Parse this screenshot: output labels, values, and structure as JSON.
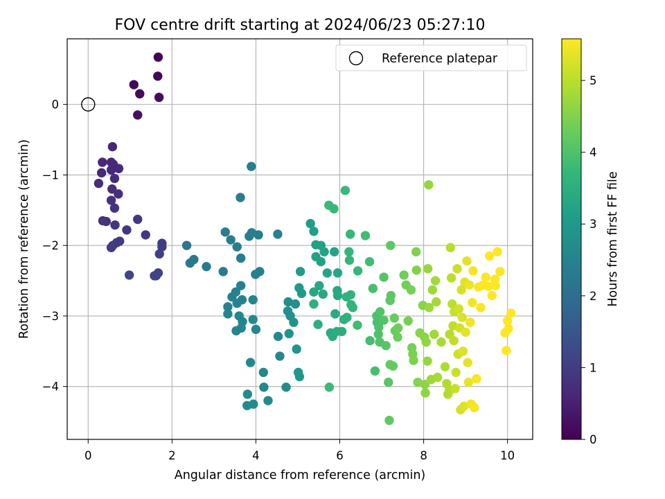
{
  "chart_data": {
    "type": "scatter",
    "title": "FOV centre drift starting at 2024/06/23 05:27:10",
    "xlabel": "Angular distance from reference (arcmin)",
    "ylabel": "Rotation from reference (arcmin)",
    "xlim": [
      -0.5,
      10.6
    ],
    "ylim": [
      -4.75,
      0.93
    ],
    "xticks": [
      0,
      2,
      4,
      6,
      8,
      10
    ],
    "yticks": [
      -4,
      -3,
      -2,
      -1,
      0
    ],
    "xtick_labels": [
      "0",
      "2",
      "4",
      "6",
      "8",
      "10"
    ],
    "ytick_labels": [
      "−4",
      "−3",
      "−2",
      "−1",
      "0"
    ],
    "grid": true,
    "legend": {
      "location": "upper right",
      "entries": [
        {
          "label": "Reference platepar",
          "marker": "open-circle"
        }
      ]
    },
    "reference_point": {
      "x": 0,
      "y": 0
    },
    "colorbar": {
      "label": "Hours from first FF file",
      "colormap": "viridis",
      "range": [
        0,
        5.58
      ],
      "ticks": [
        0,
        1,
        2,
        3,
        4,
        5
      ],
      "tick_labels": [
        "0",
        "1",
        "2",
        "3",
        "4",
        "5"
      ],
      "stops": [
        "#440154",
        "#482878",
        "#3e4989",
        "#31688e",
        "#26828e",
        "#1f9e89",
        "#35b779",
        "#6ece58",
        "#b5de2b",
        "#fde725"
      ]
    },
    "points": [
      [
        1.67,
        0.67,
        0.05
      ],
      [
        1.66,
        0.4,
        0.08
      ],
      [
        1.09,
        0.28,
        0.12
      ],
      [
        1.23,
        0.15,
        0.15
      ],
      [
        1.69,
        0.1,
        0.18
      ],
      [
        1.18,
        -0.15,
        0.22
      ],
      [
        0.58,
        -0.6,
        0.6
      ],
      [
        0.34,
        -0.82,
        0.62
      ],
      [
        0.55,
        -0.82,
        0.63
      ],
      [
        0.6,
        -0.85,
        0.65
      ],
      [
        0.32,
        -0.97,
        0.66
      ],
      [
        0.55,
        -0.93,
        0.67
      ],
      [
        0.73,
        -0.91,
        0.68
      ],
      [
        0.63,
        -1.05,
        0.7
      ],
      [
        0.25,
        -1.12,
        0.72
      ],
      [
        0.57,
        -1.2,
        0.74
      ],
      [
        0.72,
        -1.27,
        0.76
      ],
      [
        0.55,
        -1.36,
        0.78
      ],
      [
        0.63,
        -1.47,
        0.8
      ],
      [
        0.35,
        -1.65,
        0.82
      ],
      [
        0.43,
        -1.66,
        0.84
      ],
      [
        0.64,
        -1.71,
        0.86
      ],
      [
        1.18,
        -1.63,
        0.88
      ],
      [
        0.92,
        -1.78,
        0.9
      ],
      [
        1.37,
        -1.85,
        0.92
      ],
      [
        0.75,
        -1.94,
        0.95
      ],
      [
        0.68,
        -1.96,
        0.97
      ],
      [
        0.59,
        -2.0,
        0.99
      ],
      [
        0.55,
        -2.03,
        1.0
      ],
      [
        1.76,
        -1.97,
        1.02
      ],
      [
        1.76,
        -2.02,
        1.05
      ],
      [
        1.7,
        -2.12,
        1.08
      ],
      [
        1.67,
        -2.39,
        1.1
      ],
      [
        1.62,
        -2.43,
        1.12
      ],
      [
        1.58,
        -2.43,
        1.14
      ],
      [
        0.98,
        -2.42,
        1.17
      ],
      [
        2.35,
        -2.0,
        2.18
      ],
      [
        2.52,
        -2.2,
        2.22
      ],
      [
        2.43,
        -2.25,
        2.25
      ],
      [
        2.82,
        -2.3,
        2.28
      ],
      [
        3.22,
        -2.37,
        2.3
      ],
      [
        3.27,
        -1.81,
        2.33
      ],
      [
        3.4,
        -1.92,
        2.35
      ],
      [
        3.55,
        -2.02,
        2.36
      ],
      [
        3.64,
        -2.18,
        2.37
      ],
      [
        3.63,
        -1.32,
        2.38
      ],
      [
        3.89,
        -0.88,
        2.39
      ],
      [
        3.9,
        -1.82,
        2.4
      ],
      [
        3.84,
        -1.87,
        2.41
      ],
      [
        4.06,
        -1.85,
        2.42
      ],
      [
        3.99,
        -2.41,
        2.43
      ],
      [
        4.09,
        -2.37,
        2.44
      ],
      [
        4.52,
        -1.84,
        2.45
      ],
      [
        3.64,
        -2.57,
        2.46
      ],
      [
        3.52,
        -2.66,
        2.47
      ],
      [
        3.43,
        -2.73,
        2.48
      ],
      [
        3.33,
        -2.87,
        2.49
      ],
      [
        3.55,
        -2.82,
        2.5
      ],
      [
        3.67,
        -2.77,
        2.51
      ],
      [
        3.93,
        -2.77,
        2.52
      ],
      [
        3.33,
        -2.97,
        2.53
      ],
      [
        3.6,
        -3.0,
        2.54
      ],
      [
        3.68,
        -3.08,
        2.55
      ],
      [
        3.65,
        -3.17,
        2.56
      ],
      [
        3.53,
        -3.21,
        2.57
      ],
      [
        3.93,
        -3.05,
        2.58
      ],
      [
        4.0,
        -3.19,
        2.59
      ],
      [
        3.87,
        -3.66,
        2.6
      ],
      [
        4.18,
        -3.8,
        2.61
      ],
      [
        4.53,
        -3.29,
        2.62
      ],
      [
        4.57,
        -3.57,
        2.63
      ],
      [
        4.19,
        -4.01,
        2.64
      ],
      [
        3.8,
        -4.11,
        2.65
      ],
      [
        3.79,
        -4.27,
        2.66
      ],
      [
        3.94,
        -4.25,
        2.67
      ],
      [
        4.29,
        -4.2,
        2.68
      ],
      [
        4.72,
        -4.01,
        2.7
      ],
      [
        4.77,
        -2.8,
        2.75
      ],
      [
        4.94,
        -2.83,
        2.8
      ],
      [
        4.76,
        -2.93,
        2.82
      ],
      [
        4.82,
        -3.0,
        2.85
      ],
      [
        4.9,
        -3.09,
        2.87
      ],
      [
        4.79,
        -3.25,
        2.89
      ],
      [
        4.97,
        -3.47,
        2.9
      ],
      [
        5.01,
        -3.8,
        2.92
      ],
      [
        5.04,
        -3.86,
        2.95
      ],
      [
        5.03,
        -2.6,
        3.0
      ],
      [
        5.09,
        -2.68,
        3.02
      ],
      [
        5.06,
        -2.37,
        3.05
      ],
      [
        5.3,
        -1.69,
        3.1
      ],
      [
        5.38,
        -1.8,
        3.12
      ],
      [
        5.43,
        -1.99,
        3.15
      ],
      [
        5.55,
        -2.0,
        3.18
      ],
      [
        5.43,
        -2.16,
        3.2
      ],
      [
        5.55,
        -2.23,
        3.22
      ],
      [
        5.63,
        -2.09,
        3.24
      ],
      [
        5.87,
        -2.09,
        3.26
      ],
      [
        5.7,
        -2.39,
        3.28
      ],
      [
        5.95,
        -2.39,
        3.3
      ],
      [
        5.51,
        -2.57,
        3.32
      ],
      [
        5.38,
        -2.66,
        3.33
      ],
      [
        5.6,
        -2.69,
        3.34
      ],
      [
        5.94,
        -2.64,
        3.36
      ],
      [
        5.95,
        -2.71,
        3.38
      ],
      [
        5.89,
        -2.97,
        3.4
      ],
      [
        5.78,
        -3.24,
        3.42
      ],
      [
        5.83,
        -3.29,
        3.44
      ],
      [
        5.93,
        -3.22,
        3.46
      ],
      [
        6.05,
        -3.22,
        3.48
      ],
      [
        5.48,
        -3.12,
        3.5
      ],
      [
        5.38,
        -2.83,
        3.52
      ],
      [
        6.1,
        -3.05,
        3.54
      ],
      [
        6.17,
        -3.02,
        3.56
      ],
      [
        6.16,
        -2.73,
        3.58
      ],
      [
        6.26,
        -2.7,
        3.6
      ],
      [
        6.27,
        -2.84,
        3.62
      ],
      [
        6.31,
        -2.88,
        3.64
      ],
      [
        6.22,
        -2.09,
        3.66
      ],
      [
        6.23,
        -2.21,
        3.68
      ],
      [
        6.43,
        -2.36,
        3.7
      ],
      [
        6.25,
        -1.84,
        3.72
      ],
      [
        5.86,
        -1.48,
        3.74
      ],
      [
        5.74,
        -1.43,
        3.76
      ],
      [
        6.13,
        -1.22,
        3.78
      ],
      [
        5.75,
        -4.01,
        3.8
      ],
      [
        6.42,
        -3.13,
        3.82
      ],
      [
        6.61,
        -1.86,
        3.84
      ],
      [
        6.71,
        -2.23,
        3.86
      ],
      [
        6.72,
        -3.35,
        3.88
      ],
      [
        6.79,
        -2.61,
        3.9
      ],
      [
        6.84,
        -3.78,
        3.92
      ],
      [
        6.88,
        -3.0,
        3.94
      ],
      [
        6.89,
        -3.09,
        3.96
      ],
      [
        6.93,
        -3.16,
        3.98
      ],
      [
        6.92,
        -3.26,
        4.0
      ],
      [
        6.95,
        -3.37,
        4.02
      ],
      [
        6.96,
        -2.94,
        4.04
      ],
      [
        7.05,
        -3.06,
        4.06
      ],
      [
        7.05,
        -2.45,
        4.08
      ],
      [
        7.1,
        -3.42,
        4.1
      ],
      [
        7.16,
        -3.94,
        4.12
      ],
      [
        7.2,
        -2.78,
        4.14
      ],
      [
        7.22,
        -2.71,
        4.16
      ],
      [
        7.21,
        -2.0,
        4.18
      ],
      [
        7.18,
        -4.48,
        4.2
      ],
      [
        7.2,
        -3.69,
        4.22
      ],
      [
        7.27,
        -3.71,
        4.24
      ],
      [
        7.3,
        -3.03,
        4.26
      ],
      [
        7.32,
        -3.21,
        4.28
      ],
      [
        7.38,
        -3.3,
        4.3
      ],
      [
        7.39,
        -3.17,
        4.32
      ],
      [
        7.53,
        -2.42,
        4.34
      ],
      [
        7.58,
        -2.56,
        4.36
      ],
      [
        7.63,
        -3.07,
        4.38
      ],
      [
        7.7,
        -2.63,
        4.4
      ],
      [
        7.72,
        -3.45,
        4.42
      ],
      [
        7.74,
        -3.54,
        4.44
      ],
      [
        7.76,
        -3.63,
        4.46
      ],
      [
        7.82,
        -2.09,
        4.48
      ],
      [
        7.83,
        -2.35,
        4.5
      ],
      [
        7.86,
        -3.94,
        4.52
      ],
      [
        7.91,
        -3.24,
        4.54
      ],
      [
        7.98,
        -2.85,
        4.56
      ],
      [
        8.02,
        -3.3,
        4.58
      ],
      [
        8.03,
        -3.97,
        4.6
      ],
      [
        8.04,
        -4.09,
        4.62
      ],
      [
        8.06,
        -3.37,
        4.64
      ],
      [
        8.09,
        -3.64,
        4.66
      ],
      [
        8.1,
        -2.33,
        4.68
      ],
      [
        8.12,
        -1.14,
        4.7
      ],
      [
        8.13,
        -2.88,
        4.72
      ],
      [
        8.18,
        -3.9,
        4.74
      ],
      [
        8.21,
        -2.63,
        4.76
      ],
      [
        8.25,
        -3.26,
        4.78
      ],
      [
        8.28,
        -2.5,
        4.8
      ],
      [
        8.3,
        -2.8,
        4.82
      ],
      [
        8.33,
        -3.87,
        4.84
      ],
      [
        8.42,
        -3.37,
        4.86
      ],
      [
        8.51,
        -3.72,
        4.88
      ],
      [
        8.55,
        -3.96,
        4.9
      ],
      [
        8.58,
        -4.11,
        4.92
      ],
      [
        8.61,
        -4.06,
        4.94
      ],
      [
        8.62,
        -3.26,
        4.96
      ],
      [
        8.64,
        -2.03,
        4.98
      ],
      [
        8.66,
        -2.46,
        5.0
      ],
      [
        8.68,
        -2.83,
        5.02
      ],
      [
        8.7,
        -3.14,
        5.04
      ],
      [
        8.72,
        -3.35,
        5.06
      ],
      [
        8.73,
        -2.94,
        5.08
      ],
      [
        8.75,
        -4.03,
        5.1
      ],
      [
        8.77,
        -3.8,
        5.12
      ],
      [
        8.8,
        -2.33,
        5.14
      ],
      [
        8.82,
        -3.54,
        5.16
      ],
      [
        8.84,
        -2.9,
        5.18
      ],
      [
        8.86,
        -3.17,
        5.2
      ],
      [
        8.88,
        -4.33,
        5.22
      ],
      [
        8.9,
        -2.63,
        5.24
      ],
      [
        8.92,
        -3.02,
        5.26
      ],
      [
        8.94,
        -3.5,
        5.28
      ],
      [
        8.96,
        -4.28,
        5.3
      ],
      [
        8.98,
        -2.52,
        5.32
      ],
      [
        9.0,
        -3.23,
        5.34
      ],
      [
        9.03,
        -2.22,
        5.36
      ],
      [
        9.05,
        -3.66,
        5.38
      ],
      [
        9.07,
        -3.94,
        5.4
      ],
      [
        9.09,
        -2.56,
        5.42
      ],
      [
        9.11,
        -3.09,
        5.44
      ],
      [
        9.13,
        -4.25,
        5.46
      ],
      [
        9.16,
        -2.81,
        5.48
      ],
      [
        9.18,
        -2.36,
        5.5
      ],
      [
        9.21,
        -4.3,
        5.51
      ],
      [
        9.26,
        -3.89,
        5.52
      ],
      [
        9.31,
        -2.59,
        5.53
      ],
      [
        9.36,
        -2.88,
        5.54
      ],
      [
        9.42,
        -2.56,
        5.55
      ],
      [
        9.48,
        -2.45,
        5.56
      ],
      [
        9.55,
        -2.58,
        5.57
      ],
      [
        9.57,
        -2.15,
        5.58
      ],
      [
        9.63,
        -2.71,
        5.57
      ],
      [
        9.7,
        -2.48,
        5.58
      ],
      [
        9.76,
        -2.09,
        5.58
      ],
      [
        9.82,
        -2.37,
        5.58
      ],
      [
        9.94,
        -3.24,
        5.58
      ],
      [
        9.97,
        -3.49,
        5.58
      ],
      [
        10.0,
        -3.07,
        5.58
      ],
      [
        10.02,
        -3.18,
        5.58
      ],
      [
        10.08,
        -2.96,
        5.58
      ],
      [
        9.71,
        -2.57,
        5.57
      ]
    ]
  }
}
